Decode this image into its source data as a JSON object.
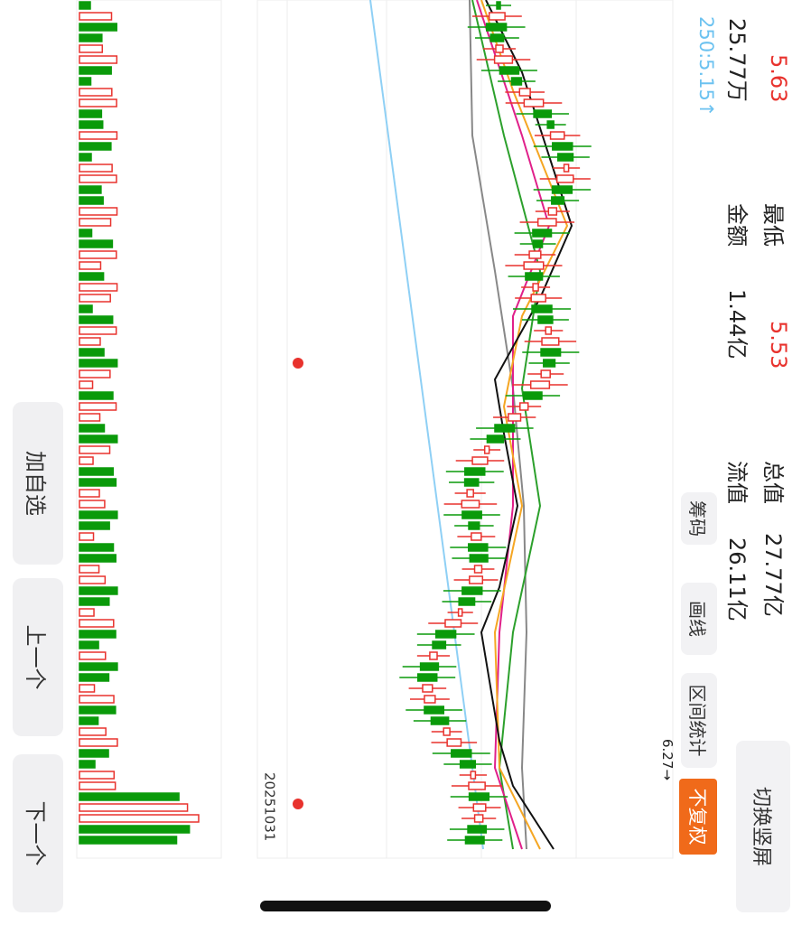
{
  "quote": {
    "row1": [
      {
        "value": "5.63"
      },
      {
        "label": "最低"
      },
      {
        "value": "5.53"
      },
      {
        "label": "总值"
      },
      {
        "value": "27.77亿"
      }
    ],
    "row2": [
      {
        "value": "25.77万"
      },
      {
        "label": "金额"
      },
      {
        "value": "1.44亿"
      },
      {
        "label": "流值"
      },
      {
        "value": "26.11亿"
      }
    ],
    "ma250": "250:5.15↑"
  },
  "toolbar": {
    "chips": "筹码",
    "draw": "画线",
    "range": "区间统计",
    "adjust": "不复权",
    "rotate": "切换竖屏",
    "latest": "6.27→"
  },
  "chart": {
    "date": "20251031"
  },
  "nav": {
    "watch": "加自选",
    "prev": "上一个",
    "next": "下一个"
  }
}
